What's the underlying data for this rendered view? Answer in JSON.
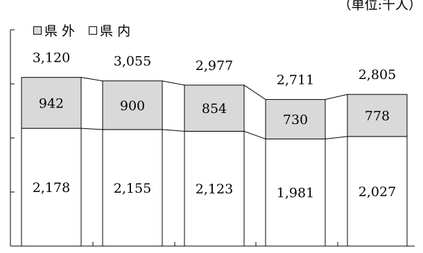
{
  "unit_label": "（単位:千人）",
  "legend": [
    {
      "label": "県 外",
      "color": "#d9d9d9"
    },
    {
      "label": "県 内",
      "color": "#ffffff"
    }
  ],
  "chart_data": {
    "type": "bar",
    "stacked": true,
    "categories": [
      "",
      "",
      "",
      "",
      ""
    ],
    "series": [
      {
        "name": "県 内",
        "values": [
          2178,
          2155,
          2123,
          1981,
          2027
        ],
        "color": "#ffffff"
      },
      {
        "name": "県 外",
        "values": [
          942,
          900,
          854,
          730,
          778
        ],
        "color": "#d9d9d9"
      }
    ],
    "totals": [
      3120,
      3055,
      2977,
      2711,
      2805
    ],
    "value_labels": {
      "inside": [
        "2,178",
        "2,155",
        "2,123",
        "1,981",
        "2,027"
      ],
      "outside": [
        "942",
        "900",
        "854",
        "730",
        "778"
      ],
      "total": [
        "3,120",
        "3,055",
        "2,977",
        "2,711",
        "2,805"
      ]
    },
    "ylim": [
      0,
      4000
    ],
    "grid": false,
    "legend_position": "top-left",
    "title": "",
    "xlabel": "",
    "ylabel": ""
  }
}
